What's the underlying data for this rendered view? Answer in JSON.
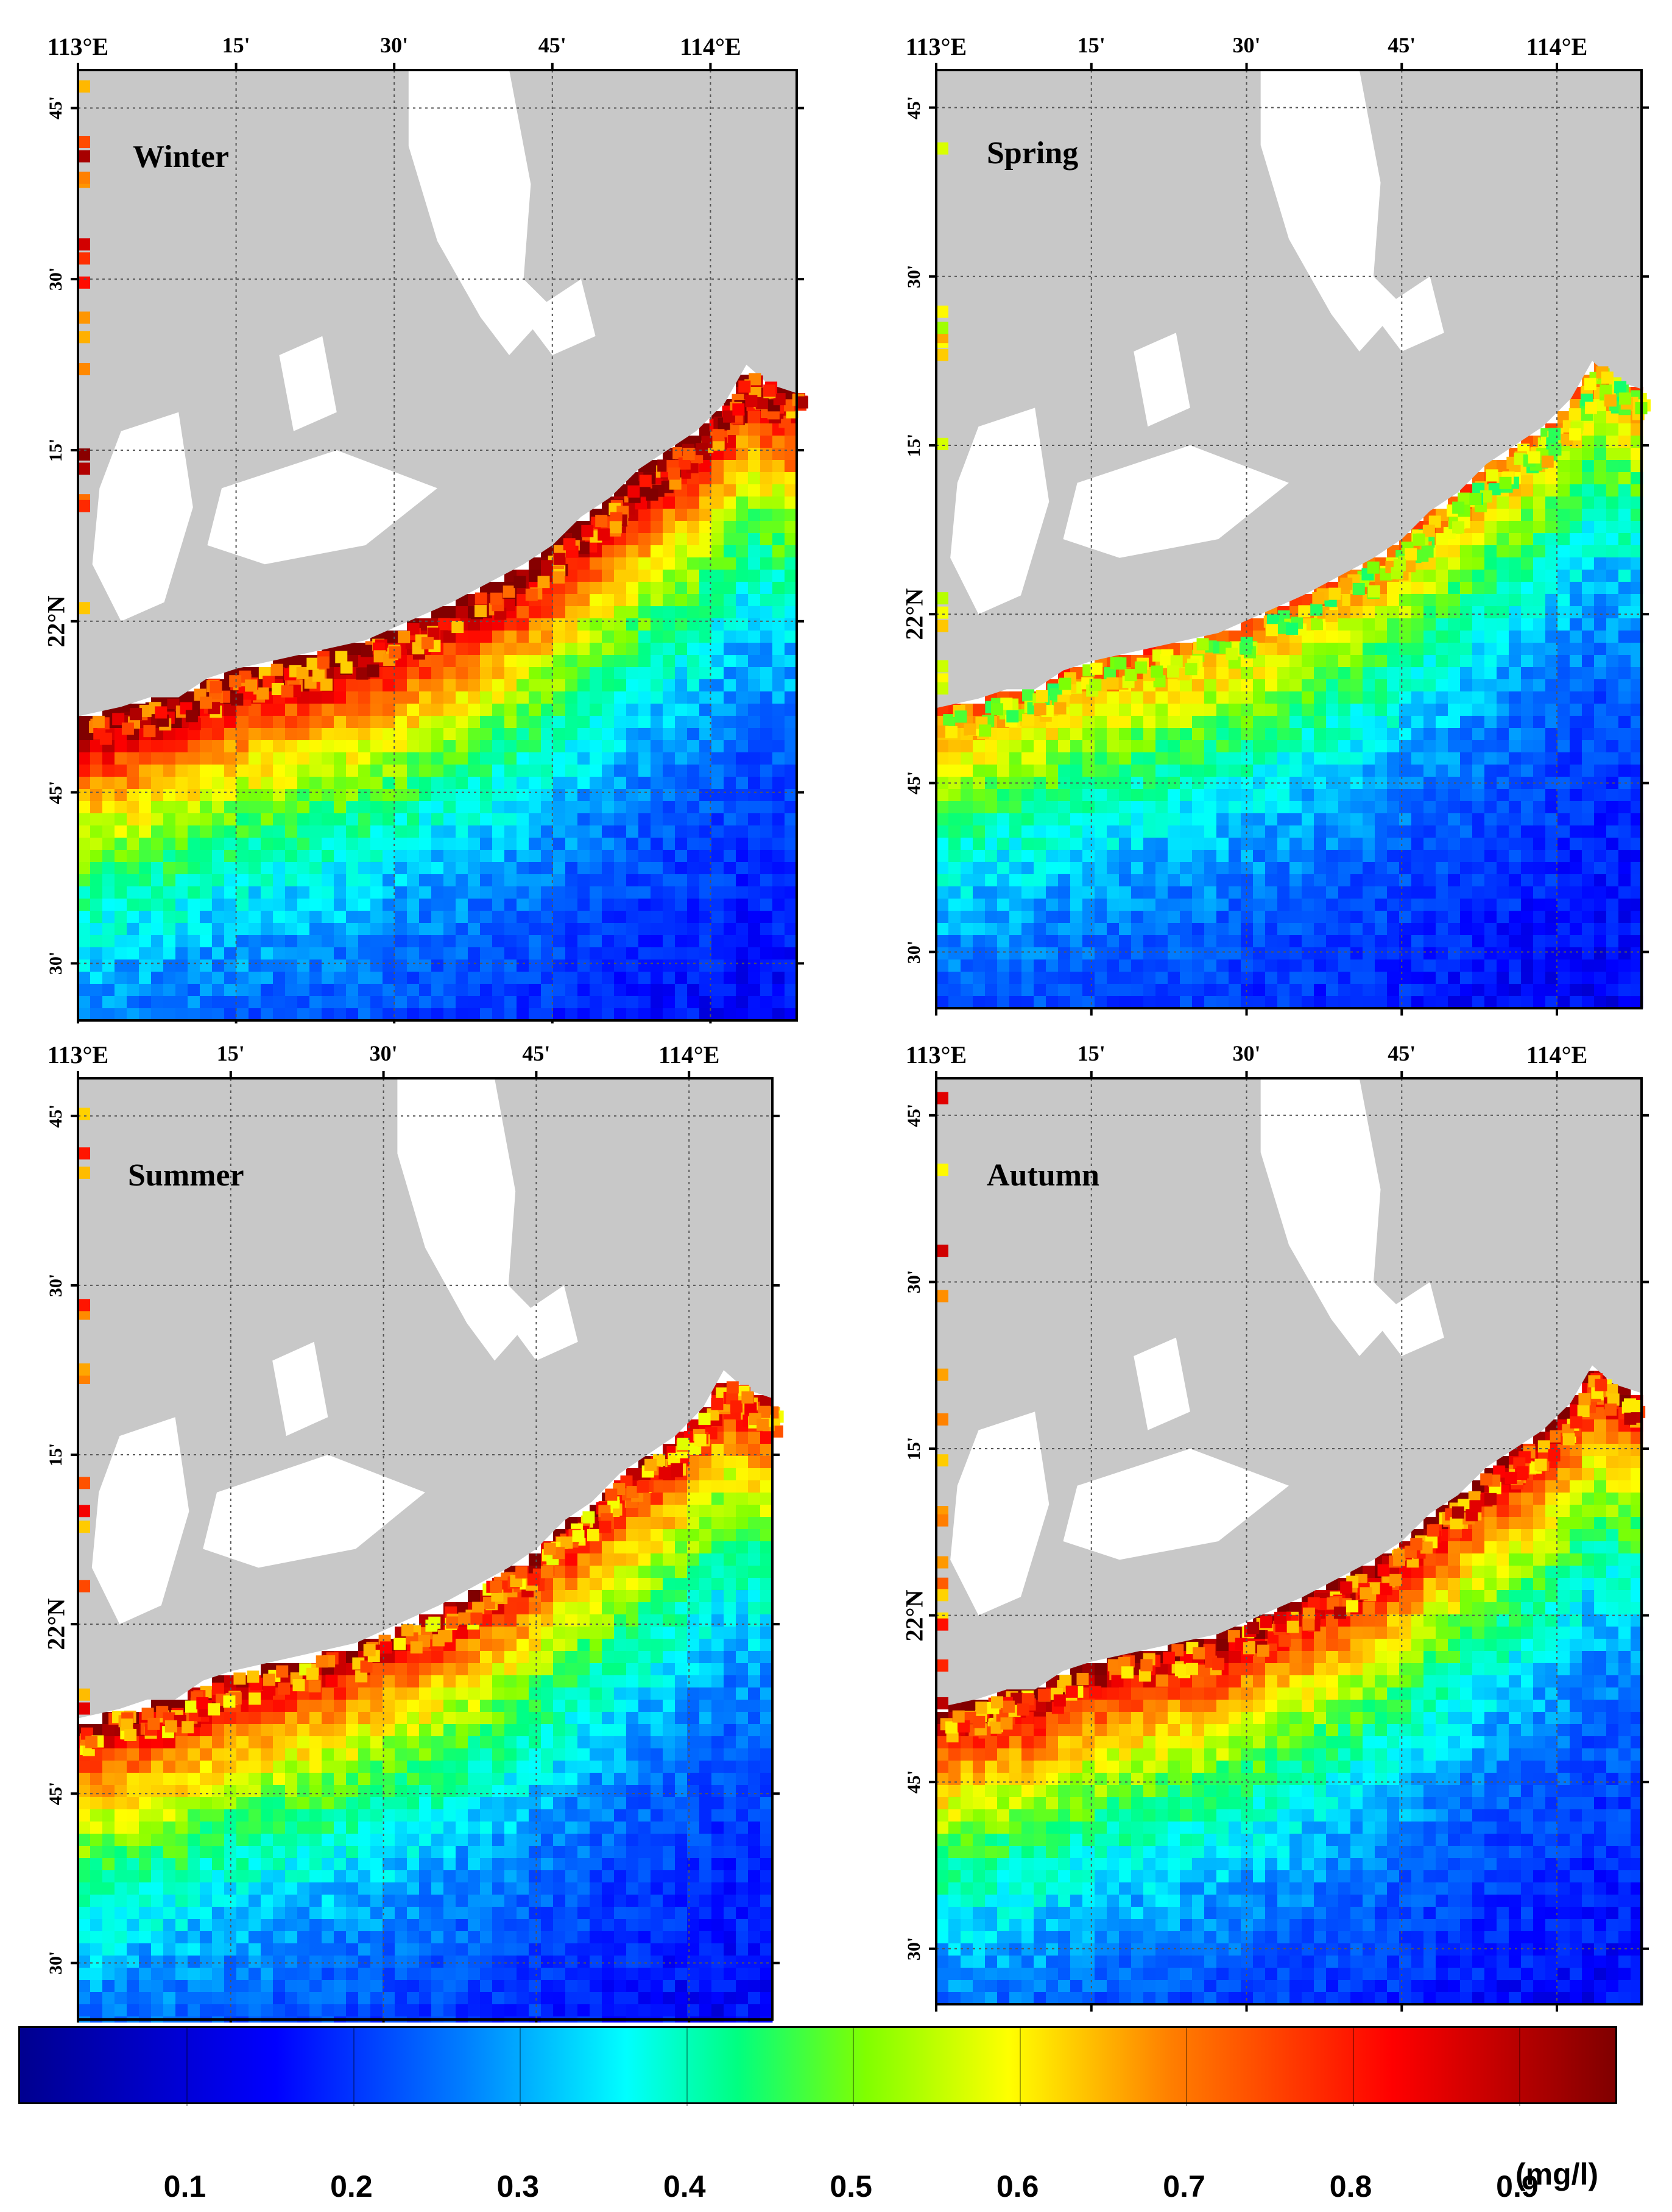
{
  "panels": [
    {
      "season": "Winter",
      "lon_labels": [
        "113°E",
        "15'",
        "30'",
        "45'",
        "114°E"
      ],
      "lat_labels": [
        "45'",
        "30'",
        "15'",
        "22°N",
        "45'",
        "30'"
      ]
    },
    {
      "season": "Spring",
      "lon_labels": [
        "113°E",
        "15'",
        "30'",
        "45'",
        "114°E"
      ],
      "lat_labels": [
        "45'",
        "30'",
        "15'",
        "22°N",
        "45'",
        "30'"
      ]
    },
    {
      "season": "Summer",
      "lon_labels": [
        "113°E",
        "15'",
        "30'",
        "45'",
        "114°E"
      ],
      "lat_labels": [
        "45'",
        "30'",
        "15'",
        "22°N",
        "45'",
        "30'"
      ]
    },
    {
      "season": "Autumn",
      "lon_labels": [
        "113°E",
        "15'",
        "30'",
        "45'",
        "114°E"
      ],
      "lat_labels": [
        "45'",
        "30'",
        "15'",
        "22°N",
        "45'",
        "30'"
      ]
    }
  ],
  "colorbar": {
    "ticks": [
      "0.1",
      "0.2",
      "0.3",
      "0.4",
      "0.5",
      "0.6",
      "0.7",
      "0.8",
      "0.9"
    ],
    "unit": "(mg/l)"
  },
  "colors": {
    "land": "#c8c8c8",
    "no_data": "#ffffff",
    "frame": "#000000"
  }
}
